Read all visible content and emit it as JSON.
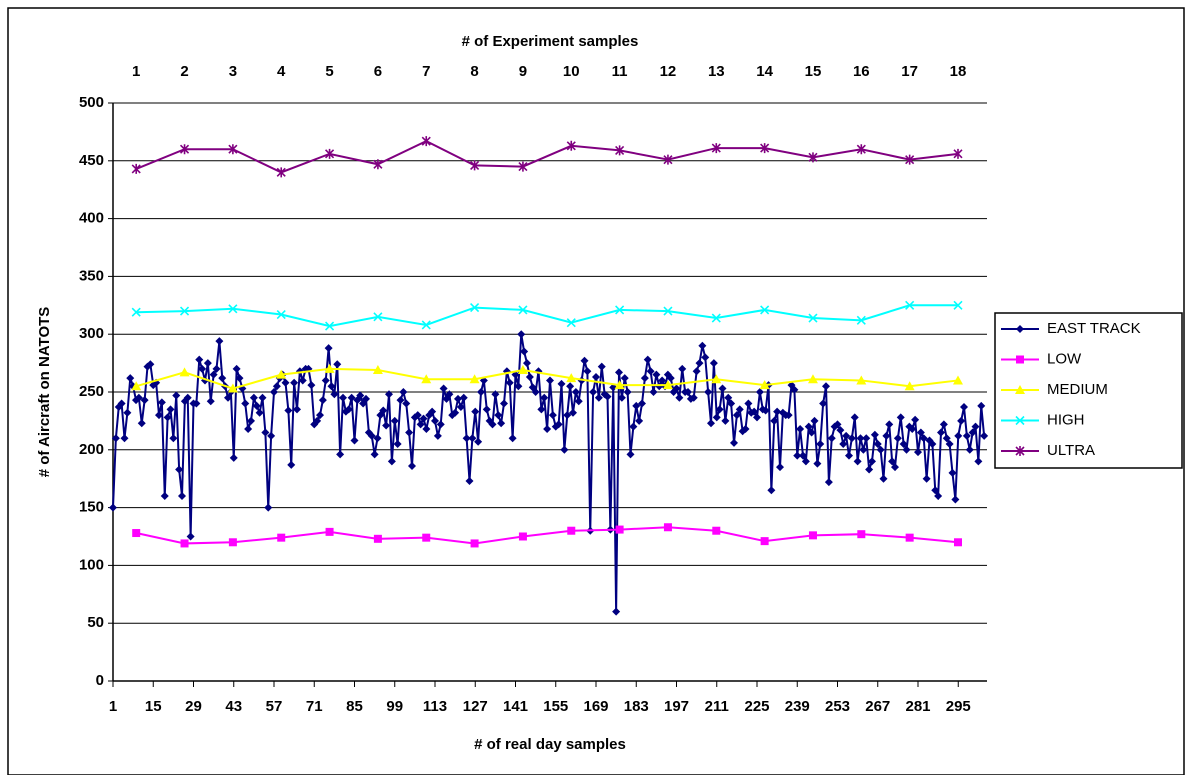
{
  "chart_data": {
    "type": "line",
    "x_title": "# of real day samples",
    "x2_title": "# of Experiment samples",
    "y_title": "# of Aircraft on NATOTS",
    "xlim": [
      1,
      305
    ],
    "xticks": [
      1,
      15,
      29,
      43,
      57,
      71,
      85,
      99,
      113,
      127,
      141,
      155,
      169,
      183,
      197,
      211,
      225,
      239,
      253,
      267,
      281,
      295
    ],
    "x2lim": [
      0.52,
      18.6
    ],
    "x2ticks": [
      1,
      2,
      3,
      4,
      5,
      6,
      7,
      8,
      9,
      10,
      11,
      12,
      13,
      14,
      15,
      16,
      17,
      18
    ],
    "ylim": [
      0,
      500
    ],
    "yticks": [
      0,
      50,
      100,
      150,
      200,
      250,
      300,
      350,
      400,
      450,
      500
    ],
    "grid": true,
    "legend": "right",
    "series": [
      {
        "name": "EAST TRACK",
        "color": "#000080",
        "marker": "diamond",
        "x": [
          1,
          2,
          3,
          4,
          5,
          6,
          7,
          8,
          9,
          10,
          11,
          12,
          13,
          14,
          15,
          16,
          17,
          18,
          19,
          20,
          21,
          22,
          23,
          24,
          25,
          26,
          27,
          28,
          29,
          30,
          31,
          32,
          33,
          34,
          35,
          36,
          37,
          38,
          39,
          40,
          41,
          42,
          43,
          44,
          45,
          46,
          47,
          48,
          49,
          50,
          51,
          52,
          53,
          54,
          55,
          56,
          57,
          58,
          59,
          60,
          61,
          62,
          63,
          64,
          65,
          66,
          67,
          68,
          69,
          70,
          71,
          72,
          73,
          74,
          75,
          76,
          77,
          78,
          79,
          80,
          81,
          82,
          83,
          84,
          85,
          86,
          87,
          88,
          89,
          90,
          91,
          92,
          93,
          94,
          95,
          96,
          97,
          98,
          99,
          100,
          101,
          102,
          103,
          104,
          105,
          106,
          107,
          108,
          109,
          110,
          111,
          112,
          113,
          114,
          115,
          116,
          117,
          118,
          119,
          120,
          121,
          122,
          123,
          124,
          125,
          126,
          127,
          128,
          129,
          130,
          131,
          132,
          133,
          134,
          135,
          136,
          137,
          138,
          139,
          140,
          141,
          142,
          143,
          144,
          145,
          146,
          147,
          148,
          149,
          150,
          151,
          152,
          153,
          154,
          155,
          156,
          157,
          158,
          159,
          160,
          161,
          162,
          163,
          164,
          165,
          166,
          167,
          168,
          169,
          170,
          171,
          172,
          173,
          174,
          175,
          176,
          177,
          178,
          179,
          180,
          181,
          182,
          183,
          184,
          185,
          186,
          187,
          188,
          189,
          190,
          191,
          192,
          193,
          194,
          195,
          196,
          197,
          198,
          199,
          200,
          201,
          202,
          203,
          204,
          205,
          206,
          207,
          208,
          209,
          210,
          211,
          212,
          213,
          214,
          215,
          216,
          217,
          218,
          219,
          220,
          221,
          222,
          223,
          224,
          225,
          226,
          227,
          228,
          229,
          230,
          231,
          232,
          233,
          234,
          235,
          236,
          237,
          238,
          239,
          240,
          241,
          242,
          243,
          244,
          245,
          246,
          247,
          248,
          249,
          250,
          251,
          252,
          253,
          254,
          255,
          256,
          257,
          258,
          259,
          260,
          261,
          262,
          263,
          264,
          265,
          266,
          267,
          268,
          269,
          270,
          271,
          272,
          273,
          274,
          275,
          276,
          277,
          278,
          279,
          280,
          281,
          282,
          283,
          284,
          285,
          286,
          287,
          288,
          289,
          290,
          291,
          292,
          293,
          294,
          295,
          296,
          297,
          298,
          299,
          300,
          301,
          302,
          303,
          304
        ],
        "values": [
          150,
          210,
          237,
          240,
          210,
          232,
          262,
          255,
          243,
          245,
          223,
          243,
          272,
          274,
          256,
          258,
          230,
          241,
          160,
          228,
          235,
          210,
          247,
          183,
          160,
          242,
          245,
          125,
          240,
          240,
          278,
          270,
          260,
          275,
          242,
          265,
          270,
          294,
          262,
          255,
          245,
          250,
          193,
          270,
          262,
          253,
          240,
          218,
          225,
          245,
          238,
          232,
          245,
          215,
          150,
          212,
          250,
          255,
          262,
          265,
          258,
          234,
          187,
          258,
          235,
          268,
          260,
          270,
          270,
          256,
          222,
          225,
          230,
          243,
          260,
          288,
          255,
          248,
          274,
          196,
          245,
          233,
          235,
          245,
          208,
          243,
          247,
          240,
          244,
          215,
          212,
          196,
          210,
          230,
          234,
          221,
          248,
          190,
          225,
          205,
          243,
          250,
          240,
          215,
          186,
          228,
          230,
          222,
          227,
          218,
          230,
          233,
          225,
          212,
          222,
          253,
          244,
          248,
          230,
          232,
          244,
          237,
          245,
          210,
          173,
          210,
          233,
          207,
          250,
          260,
          235,
          225,
          222,
          248,
          230,
          223,
          240,
          268,
          258,
          210,
          265,
          255,
          300,
          285,
          275,
          263,
          254,
          250,
          268,
          235,
          245,
          218,
          260,
          230,
          220,
          222,
          257,
          200,
          230,
          255,
          232,
          250,
          242,
          260,
          277,
          268,
          130,
          250,
          263,
          245,
          272,
          248,
          246,
          131,
          254,
          60,
          267,
          245,
          262,
          250,
          196,
          220,
          238,
          225,
          240,
          262,
          278,
          268,
          250,
          265,
          255,
          260,
          255,
          265,
          262,
          250,
          253,
          245,
          270,
          250,
          250,
          244,
          245,
          268,
          275,
          290,
          280,
          250,
          223,
          275,
          228,
          235,
          253,
          225,
          245,
          240,
          206,
          230,
          235,
          216,
          218,
          240,
          232,
          233,
          228,
          250,
          235,
          234,
          256,
          165,
          225,
          233,
          185,
          232,
          230,
          230,
          256,
          252,
          195,
          218,
          195,
          190,
          220,
          215,
          225,
          188,
          205,
          240,
          255,
          172,
          210,
          220,
          222,
          217,
          205,
          212,
          195,
          210,
          228,
          190,
          210,
          200,
          210,
          183,
          190,
          213,
          205,
          200,
          175,
          212,
          222,
          190,
          185,
          210,
          228,
          205,
          200,
          220,
          218,
          226,
          198,
          215,
          210,
          175,
          208,
          205,
          165,
          160,
          215,
          222,
          210,
          205,
          180,
          157,
          212,
          225,
          237,
          212,
          200,
          215,
          220,
          190,
          238,
          212
        ]
      },
      {
        "name": "LOW",
        "color": "#ff00ff",
        "marker": "square",
        "xaxis": "x2",
        "x": [
          1,
          2,
          3,
          4,
          5,
          6,
          7,
          8,
          9,
          10,
          11,
          12,
          13,
          14,
          15,
          16,
          17,
          18
        ],
        "values": [
          128,
          119,
          120,
          124,
          129,
          123,
          124,
          119,
          125,
          130,
          131,
          133,
          130,
          121,
          126,
          127,
          124,
          120
        ]
      },
      {
        "name": "MEDIUM",
        "color": "#ffff00",
        "marker": "triangle",
        "xaxis": "x2",
        "x": [
          1,
          2,
          3,
          4,
          5,
          6,
          7,
          8,
          9,
          10,
          11,
          12,
          13,
          14,
          15,
          16,
          17,
          18
        ],
        "values": [
          255,
          267,
          253,
          265,
          270,
          269,
          261,
          261,
          269,
          262,
          256,
          256,
          261,
          256,
          261,
          260,
          255,
          260
        ]
      },
      {
        "name": "HIGH",
        "color": "#00ffff",
        "marker": "x",
        "xaxis": "x2",
        "x": [
          1,
          2,
          3,
          4,
          5,
          6,
          7,
          8,
          9,
          10,
          11,
          12,
          13,
          14,
          15,
          16,
          17,
          18
        ],
        "values": [
          319,
          320,
          322,
          317,
          307,
          315,
          308,
          323,
          321,
          310,
          321,
          320,
          314,
          321,
          314,
          312,
          325,
          325
        ]
      },
      {
        "name": "ULTRA",
        "color": "#800080",
        "marker": "star",
        "xaxis": "x2",
        "x": [
          1,
          2,
          3,
          4,
          5,
          6,
          7,
          8,
          9,
          10,
          11,
          12,
          13,
          14,
          15,
          16,
          17,
          18
        ],
        "values": [
          443,
          460,
          460,
          440,
          456,
          447,
          467,
          446,
          445,
          463,
          459,
          451,
          461,
          461,
          453,
          460,
          451,
          456
        ]
      }
    ]
  }
}
